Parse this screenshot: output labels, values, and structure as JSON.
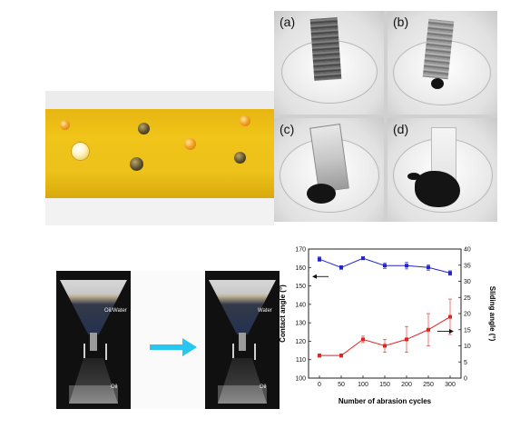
{
  "petri_panels": [
    {
      "label": "(a)"
    },
    {
      "label": "(b)"
    },
    {
      "label": "(c)"
    },
    {
      "label": "(d)"
    }
  ],
  "funnel_photo": {
    "left_labels": {
      "top": "Oil/Water",
      "bottom": "Oil"
    },
    "right_labels": {
      "top": "Water",
      "bottom": "Oil"
    },
    "arrow_color": "#27c7f0"
  },
  "chart_data": {
    "type": "line",
    "x": [
      0,
      50,
      100,
      150,
      200,
      250,
      300
    ],
    "xlabel": "Number of abrasion cycles",
    "ylabel_left": "Contact angle (°)",
    "ylabel_right": "Sliding angle (°)",
    "xlim": [
      -25,
      325
    ],
    "ylim_left": [
      100,
      170
    ],
    "ylim_right": [
      0,
      40
    ],
    "x_ticks": [
      "0",
      "50",
      "100",
      "150",
      "200",
      "250",
      "300"
    ],
    "y_ticks_left": [
      "100",
      "110",
      "120",
      "130",
      "140",
      "150",
      "160",
      "170"
    ],
    "y_ticks_right": [
      "0",
      "5",
      "10",
      "15",
      "20",
      "25",
      "30",
      "35",
      "40"
    ],
    "series": [
      {
        "axis": "left",
        "color": "#2323d6",
        "values": [
          164.5,
          160,
          165,
          161,
          161,
          160,
          157
        ],
        "errors": [
          1.2,
          1.0,
          0.8,
          1.5,
          1.8,
          1.5,
          1.2
        ]
      },
      {
        "axis": "right",
        "color": "#e32222",
        "values": [
          7,
          7,
          12,
          10,
          12,
          15,
          19
        ],
        "errors": [
          0.5,
          0.5,
          1.0,
          2.0,
          4.0,
          5.0,
          5.5
        ]
      }
    ],
    "grid": false
  }
}
